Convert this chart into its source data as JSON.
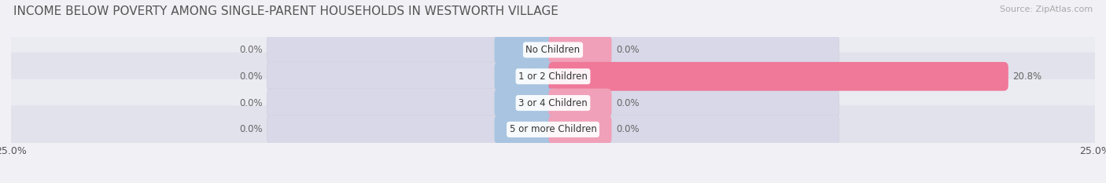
{
  "title": "INCOME BELOW POVERTY AMONG SINGLE-PARENT HOUSEHOLDS IN WESTWORTH VILLAGE",
  "source": "Source: ZipAtlas.com",
  "categories": [
    "No Children",
    "1 or 2 Children",
    "3 or 4 Children",
    "5 or more Children"
  ],
  "single_father": [
    0.0,
    0.0,
    0.0,
    0.0
  ],
  "single_mother": [
    0.0,
    20.8,
    0.0,
    0.0
  ],
  "x_min": -25.0,
  "x_max": 25.0,
  "father_color": "#a8c4e0",
  "mother_color": "#f07898",
  "stub_father_color": "#a8c4e0",
  "stub_mother_color": "#f0a0b8",
  "row_bg_odd": "#ebebf2",
  "row_bg_even": "#e2e2ec",
  "bar_bg_color": "#d8d8e8",
  "title_fontsize": 11,
  "source_fontsize": 8,
  "label_fontsize": 8.5,
  "tick_fontsize": 9,
  "legend_fontsize": 9,
  "stub_size": 2.5,
  "bg_bar_half": 13.0
}
